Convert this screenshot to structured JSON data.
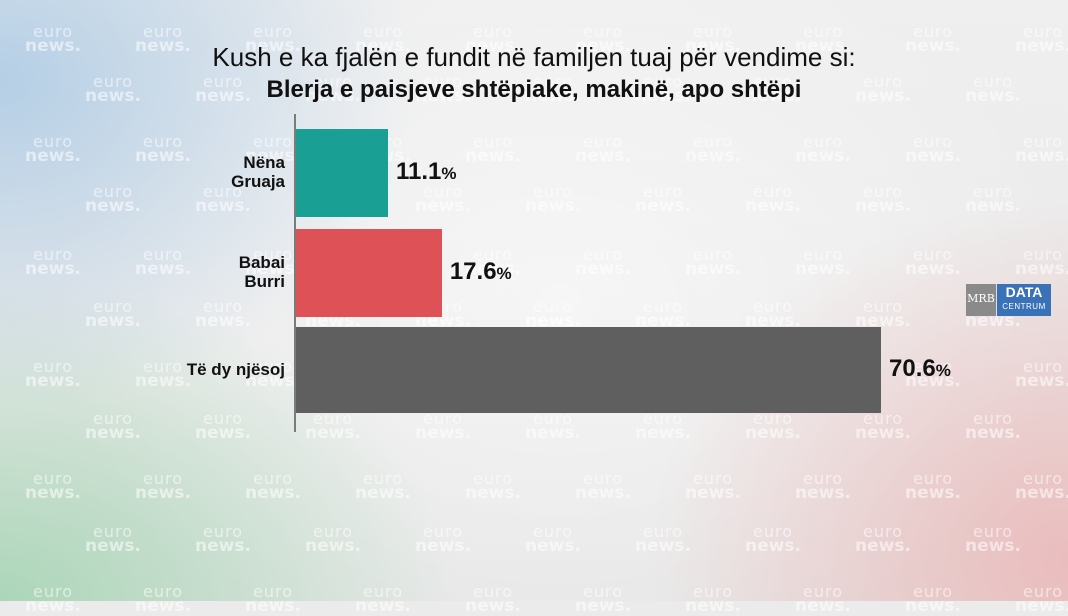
{
  "watermark": {
    "line1": "euro",
    "line2": "news."
  },
  "logo": {
    "left": "MRB",
    "right_top": "DATA",
    "right_bottom": "CENTRUM"
  },
  "chart_data": {
    "type": "bar",
    "orientation": "horizontal",
    "title": "Kush e ka fjalën e fundit në familjen tuaj për vendime si:",
    "subtitle": "Blerja e paisjeve shtëpiake, makinë, apo shtëpi",
    "xlim": [
      0,
      70.6
    ],
    "categories": [
      {
        "label_lines": [
          "Nëna",
          "Gruaja"
        ],
        "value": 11.1,
        "value_text": "11.1",
        "color": "#1a9f94"
      },
      {
        "label_lines": [
          "Babai",
          "Burri"
        ],
        "value": 17.6,
        "value_text": "17.6",
        "color": "#de5157"
      },
      {
        "label_lines": [
          "Të dy njësoj"
        ],
        "value": 70.6,
        "value_text": "70.6",
        "color": "#5f5f5f"
      }
    ],
    "unit": "%"
  }
}
